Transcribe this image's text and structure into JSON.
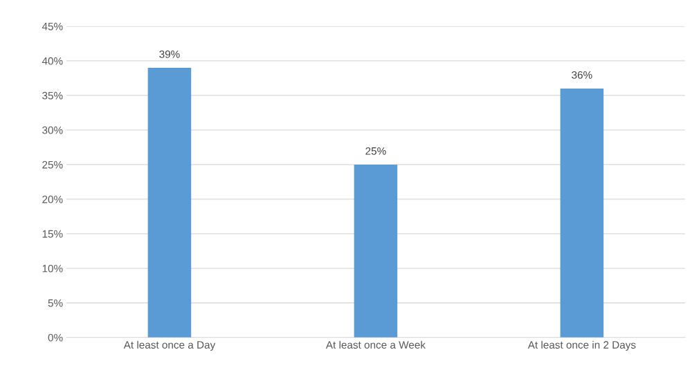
{
  "chart_data": {
    "type": "bar",
    "categories": [
      "At least once a Day",
      "At least once a Week",
      "At least once in 2 Days"
    ],
    "values": [
      39,
      25,
      36
    ],
    "value_labels": [
      "39%",
      "25%",
      "36%"
    ],
    "color": "#5b9bd5",
    "ylim": [
      0,
      45
    ],
    "yticks": [
      {
        "value": 0,
        "label": "0%"
      },
      {
        "value": 5,
        "label": "5%"
      },
      {
        "value": 10,
        "label": "10%"
      },
      {
        "value": 15,
        "label": "15%"
      },
      {
        "value": 20,
        "label": "20%"
      },
      {
        "value": 25,
        "label": "25%"
      },
      {
        "value": 30,
        "label": "30%"
      },
      {
        "value": 35,
        "label": "35%"
      },
      {
        "value": 40,
        "label": "40%"
      },
      {
        "value": 45,
        "label": "45%"
      }
    ],
    "grid": "y",
    "legend": false
  }
}
